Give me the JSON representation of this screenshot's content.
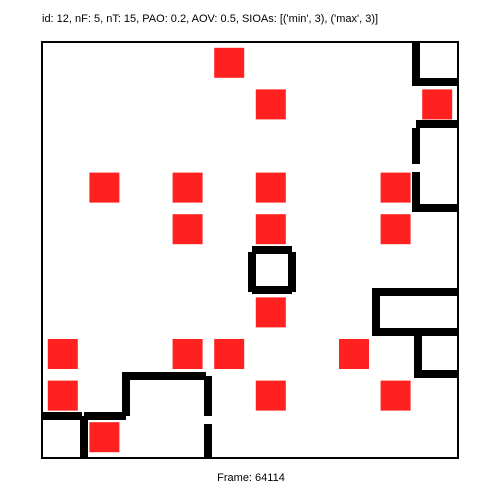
{
  "header": {
    "title": "id: 12, nF: 5, nT: 15, PAO: 0.2, AOV: 0.5, SIOAs: [('min', 3), ('max', 3)]"
  },
  "footer": {
    "frame_label": "Frame: 64114"
  },
  "colors": {
    "target": "#ff2020",
    "wall": "#000000",
    "background": "#ffffff",
    "border": "#000000"
  },
  "grid": {
    "cols": 10,
    "rows": 10,
    "targets": [
      [
        4,
        0
      ],
      [
        5,
        1
      ],
      [
        9,
        1
      ],
      [
        1,
        3
      ],
      [
        3,
        3
      ],
      [
        5,
        3
      ],
      [
        8,
        3
      ],
      [
        3,
        4
      ],
      [
        5,
        4
      ],
      [
        8,
        4
      ],
      [
        5,
        6
      ],
      [
        0,
        7
      ],
      [
        3,
        7
      ],
      [
        4,
        7
      ],
      [
        7,
        7
      ],
      [
        0,
        8
      ],
      [
        5,
        8
      ],
      [
        8,
        8
      ],
      [
        1,
        9
      ]
    ]
  }
}
